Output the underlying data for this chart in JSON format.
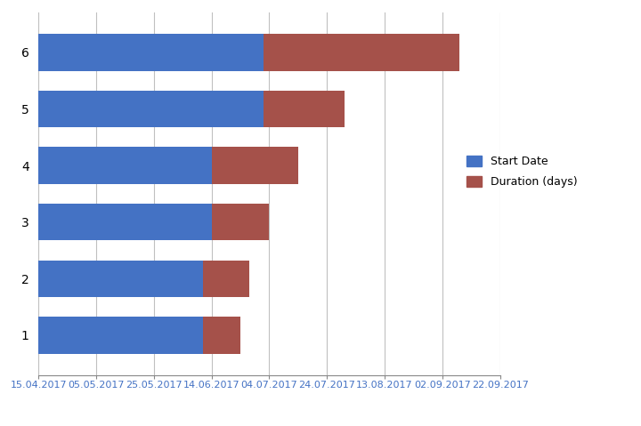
{
  "origin_date": "2017-04-15",
  "tasks": [
    "1",
    "2",
    "3",
    "4",
    "5",
    "6"
  ],
  "blue_width_days": [
    57,
    57,
    60,
    60,
    78,
    78
  ],
  "duration_days": [
    13,
    16,
    20,
    30,
    28,
    68
  ],
  "blue_color": "#4472C4",
  "red_color": "#A5514A",
  "bg_color": "#FFFFFF",
  "legend_labels": [
    "Start Date",
    "Duration (days)"
  ],
  "x_tick_dates": [
    "15.04.2017",
    "05.05.2017",
    "25.05.2017",
    "14.06.2017",
    "04.07.2017",
    "24.07.2017",
    "13.08.2017",
    "02.09.2017",
    "22.09.2017"
  ],
  "x_tick_days": [
    0,
    20,
    40,
    60,
    80,
    100,
    120,
    140,
    160
  ],
  "xlim": [
    0,
    160
  ],
  "bar_height": 0.65,
  "figsize": [
    7.2,
    4.79
  ],
  "dpi": 100,
  "legend_fontsize": 9,
  "tick_fontsize": 8,
  "ytick_fontsize": 10,
  "grid_color": "#C0C0C0",
  "grid_linewidth": 0.8,
  "xtick_color": "#4472C4"
}
